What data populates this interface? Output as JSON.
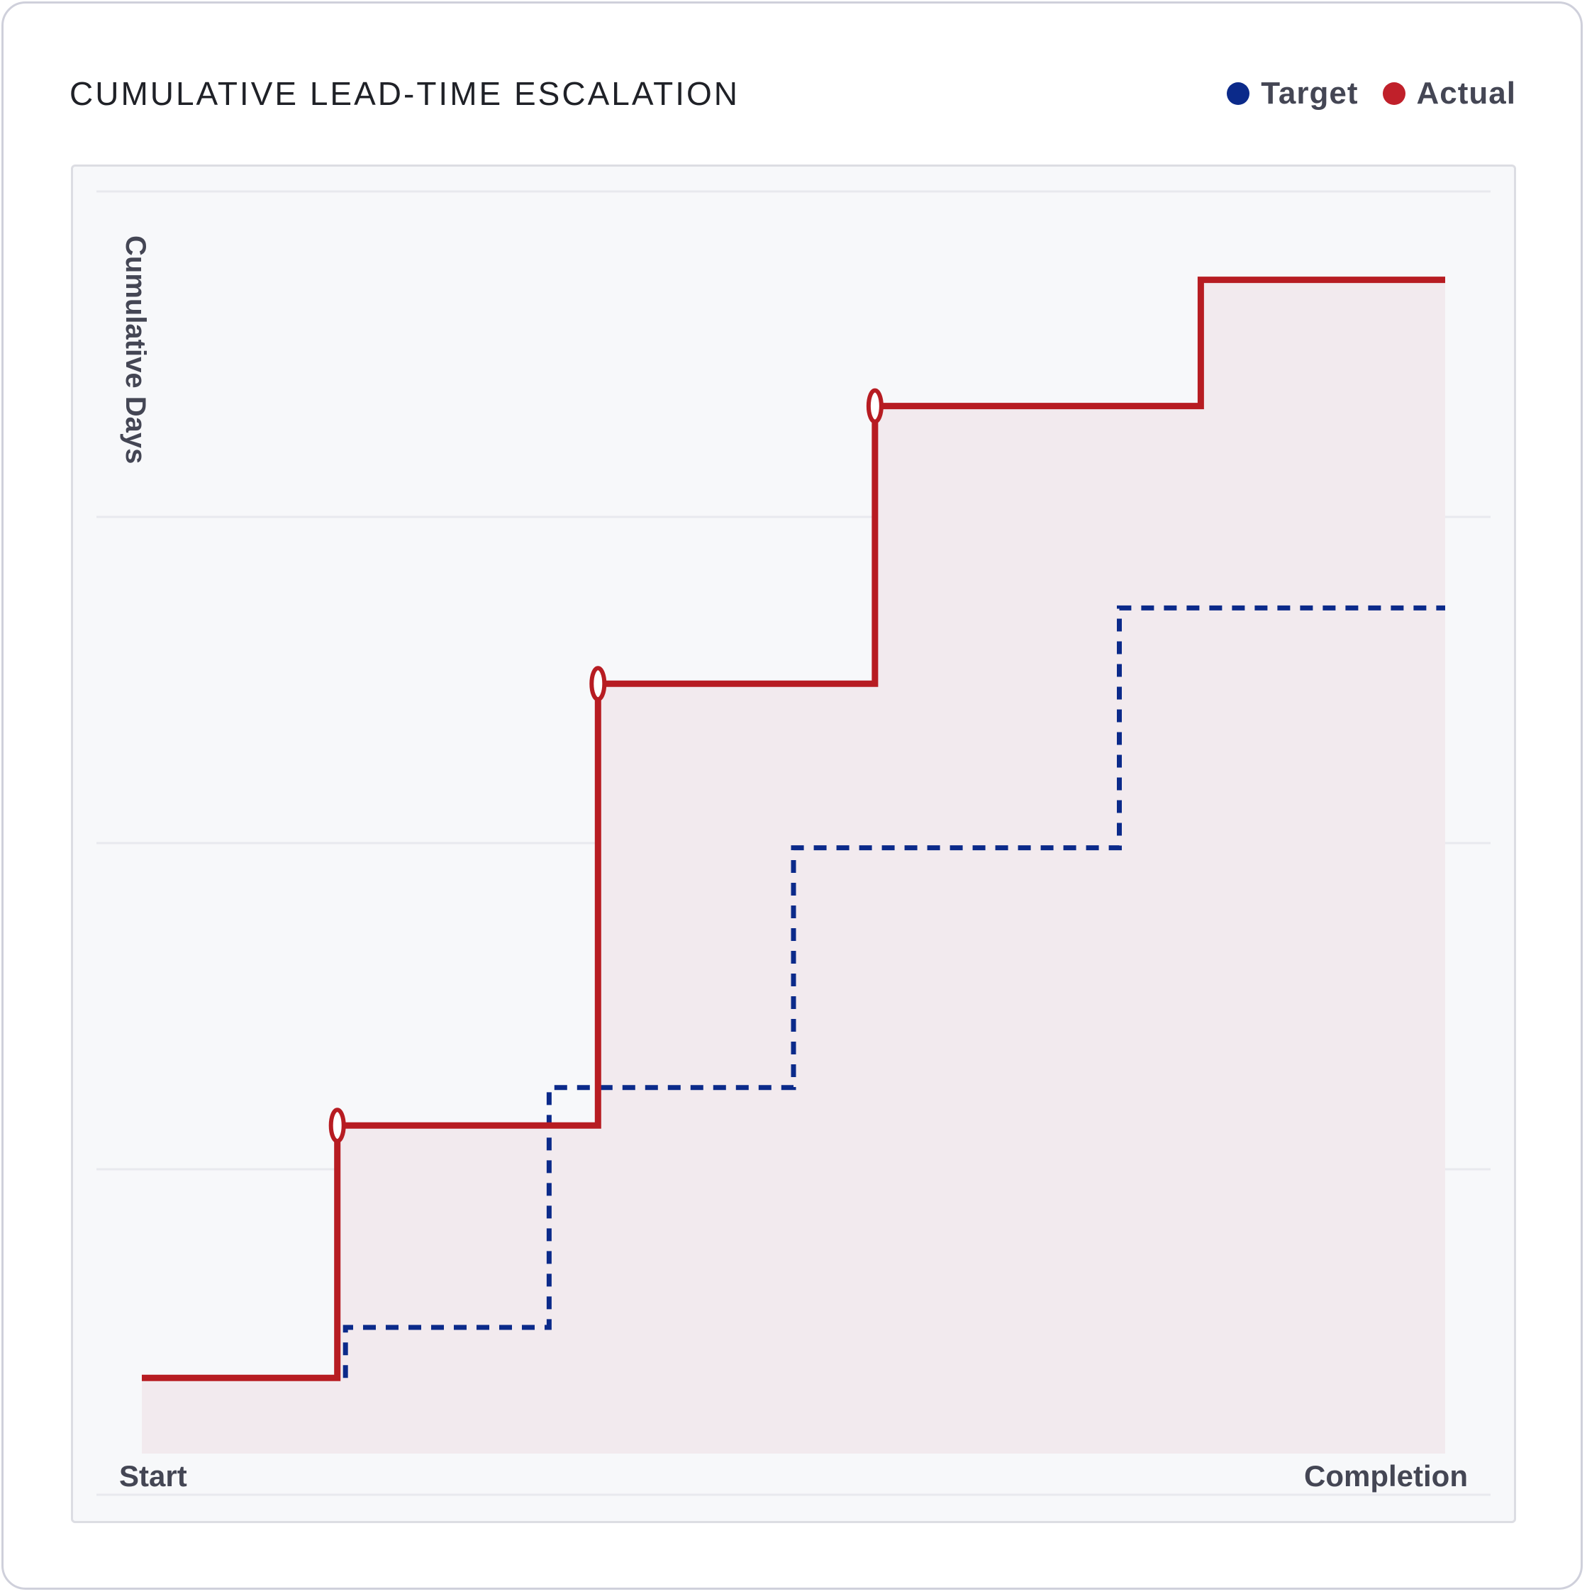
{
  "chart_data": {
    "type": "line",
    "step": true,
    "title": "CUMULATIVE LEAD-TIME ESCALATION",
    "ylabel": "Cumulative Days",
    "x_tick_labels": [
      "Start",
      "Completion"
    ],
    "x": [
      0,
      14,
      17,
      31,
      37,
      49,
      51,
      63,
      74,
      80
    ],
    "ylim": [
      0,
      100
    ],
    "grid": true,
    "legend_position": "top-right",
    "series": [
      {
        "name": "Target",
        "style": "dashed",
        "color": "#0b2a8a",
        "steps": [
          {
            "x": 12.5,
            "y": 10
          },
          {
            "x": 25,
            "y": 29
          },
          {
            "x": 40,
            "y": 48
          },
          {
            "x": 60,
            "y": 67
          },
          {
            "x": 80,
            "y": 80
          }
        ]
      },
      {
        "name": "Actual",
        "style": "solid",
        "color": "#b71c22",
        "steps": [
          {
            "x": 0,
            "y": 6
          },
          {
            "x": 12,
            "y": 26
          },
          {
            "x": 28,
            "y": 61
          },
          {
            "x": 45,
            "y": 83
          },
          {
            "x": 65,
            "y": 93
          },
          {
            "x": 80,
            "y": 93
          }
        ],
        "markers_at": [
          12,
          28,
          45
        ]
      }
    ]
  },
  "legend": {
    "items": [
      {
        "label": "Target",
        "color": "#0b2a8a"
      },
      {
        "label": "Actual",
        "color": "#c0202a"
      }
    ]
  },
  "colors": {
    "actual_fill": "#f2eaee",
    "grid": "#e8e9ee"
  }
}
